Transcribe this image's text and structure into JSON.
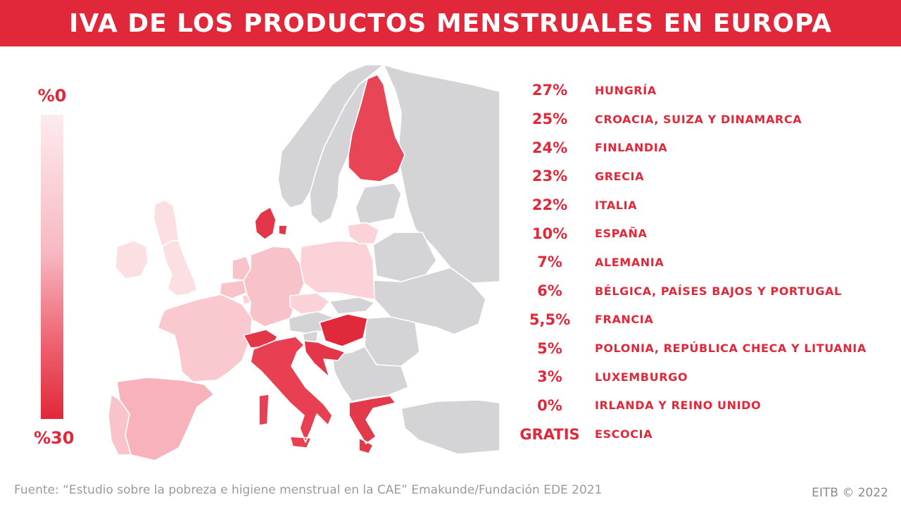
{
  "title": {
    "strong": "IVA",
    "rest": " DE LOS PRODUCTOS MENSTRUALES EN EUROPA"
  },
  "legend": {
    "min_label": "%0",
    "max_label": "%30"
  },
  "rates": [
    {
      "value": "27%",
      "countries": "HUNGRÍA"
    },
    {
      "value": "25%",
      "countries": "CROACIA, SUIZA Y DINAMARCA"
    },
    {
      "value": "24%",
      "countries": "FINLANDIA"
    },
    {
      "value": "23%",
      "countries": "GRECIA"
    },
    {
      "value": "22%",
      "countries": "ITALIA"
    },
    {
      "value": "10%",
      "countries": "ESPAÑA"
    },
    {
      "value": "7%",
      "countries": "ALEMANIA"
    },
    {
      "value": "6%",
      "countries": "BÉLGICA, PAÍSES BAJOS Y PORTUGAL"
    },
    {
      "value": "5,5%",
      "countries": "FRANCIA"
    },
    {
      "value": "5%",
      "countries": "POLONIA, REPÚBLICA CHECA Y LITUANIA"
    },
    {
      "value": "3%",
      "countries": "LUXEMBURGO"
    },
    {
      "value": "0%",
      "countries": "IRLANDA Y REINO UNIDO"
    },
    {
      "value": "GRATIS",
      "countries": "ESCOCIA"
    }
  ],
  "source": "Fuente: “Estudio sobre la pobreza e higiene menstrual en la CAE” Emakunde/Fundación EDE 2021",
  "credit": "EITB © 2022",
  "colors": {
    "accent": "#e0283a",
    "no_data": "#d4d4d6",
    "scale_low": "#fdebee",
    "scale_high": "#e0283a"
  },
  "map_countries": [
    {
      "id": "finland",
      "rate_pct": 24
    },
    {
      "id": "denmark",
      "rate_pct": 25
    },
    {
      "id": "hungary",
      "rate_pct": 27
    },
    {
      "id": "croatia",
      "rate_pct": 25
    },
    {
      "id": "switzerland",
      "rate_pct": 25
    },
    {
      "id": "greece",
      "rate_pct": 23
    },
    {
      "id": "italy",
      "rate_pct": 22
    },
    {
      "id": "spain",
      "rate_pct": 10
    },
    {
      "id": "germany",
      "rate_pct": 7
    },
    {
      "id": "belgium",
      "rate_pct": 6
    },
    {
      "id": "netherlands",
      "rate_pct": 6
    },
    {
      "id": "portugal",
      "rate_pct": 6
    },
    {
      "id": "france",
      "rate_pct": 5.5
    },
    {
      "id": "poland",
      "rate_pct": 5
    },
    {
      "id": "czechia",
      "rate_pct": 5
    },
    {
      "id": "lithuania",
      "rate_pct": 5
    },
    {
      "id": "luxembourg",
      "rate_pct": 3
    },
    {
      "id": "ireland",
      "rate_pct": 0
    },
    {
      "id": "uk",
      "rate_pct": 0
    },
    {
      "id": "scotland",
      "rate_pct": 0
    }
  ]
}
